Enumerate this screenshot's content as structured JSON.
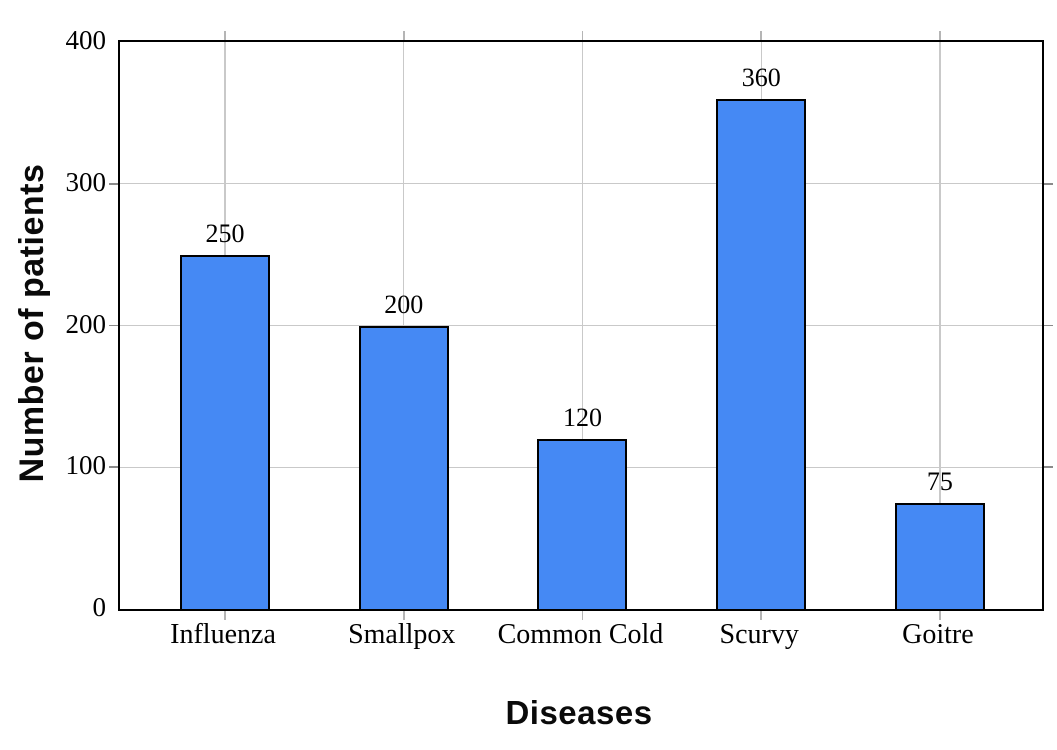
{
  "chart_data": {
    "type": "bar",
    "title": "",
    "xlabel": "Diseases",
    "ylabel": "Number of patients",
    "categories": [
      "Influenza",
      "Smallpox",
      "Common Cold",
      "Scurvy",
      "Goitre"
    ],
    "values": [
      250,
      200,
      120,
      360,
      75
    ],
    "bar_value_labels": [
      "250",
      "200",
      "120",
      "360",
      "75"
    ],
    "ylim": [
      0,
      400
    ],
    "yticks": [
      0,
      100,
      200,
      300,
      400
    ],
    "grid": "both",
    "legend": "none",
    "colors": {
      "bar_fill": "#4589F4",
      "bar_border": "#000000",
      "grid_line": "#c9c9c9",
      "axis_line": "#000000",
      "text": "#000000"
    }
  }
}
